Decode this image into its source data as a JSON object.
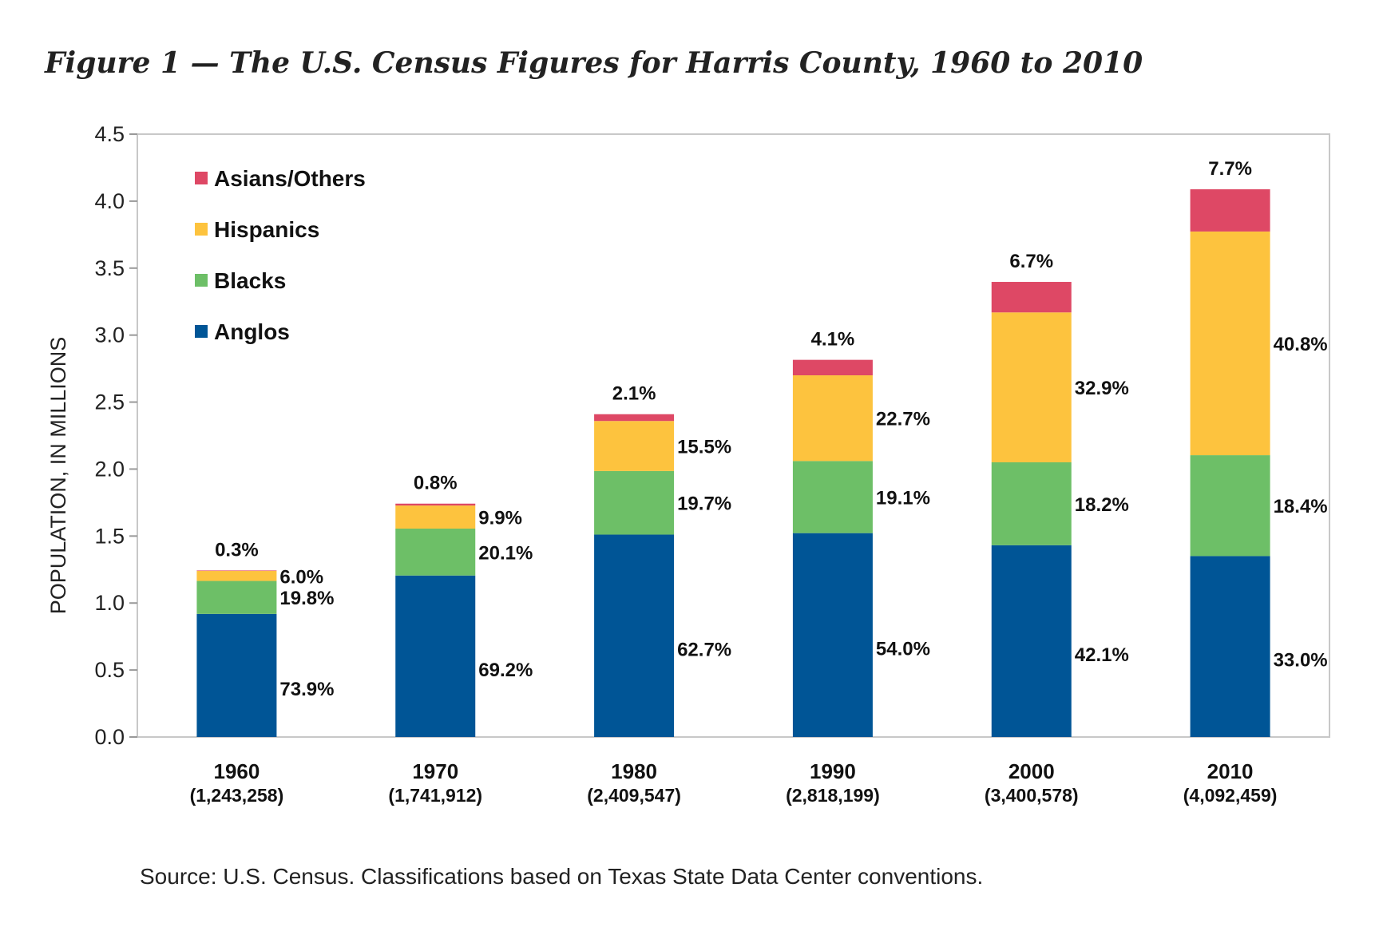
{
  "figure_title": "Figure 1 — The U.S. Census Figures for Harris County, 1960 to 2010",
  "source": "Source: U.S. Census. Classifications based on Texas State Data Center conventions.",
  "chart_data": {
    "type": "bar",
    "stacked": true,
    "title": "Figure 1 — The U.S. Census Figures for Harris County, 1960 to 2010",
    "xlabel": "",
    "ylabel": "POPULATION, IN MILLIONS",
    "ylim": [
      0,
      4.5
    ],
    "yticks": [
      "0.0",
      "0.5",
      "1.0",
      "1.5",
      "2.0",
      "2.5",
      "3.0",
      "3.5",
      "4.0",
      "4.5"
    ],
    "legend_position": "top-left",
    "categories": [
      "1960",
      "1970",
      "1980",
      "1990",
      "2000",
      "2010"
    ],
    "totals": [
      "(1,243,258)",
      "(1,741,912)",
      "(2,409,547)",
      "(2,818,199)",
      "(3,400,578)",
      "(4,092,459)"
    ],
    "total_values": [
      1243258,
      1741912,
      2409547,
      2818199,
      3400578,
      4092459
    ],
    "series": [
      {
        "name": "Anglos",
        "color": "#005596",
        "percents": [
          73.9,
          69.2,
          62.7,
          54.0,
          42.1,
          33.0
        ],
        "labels": [
          "73.9%",
          "69.2%",
          "62.7%",
          "54.0%",
          "42.1%",
          "33.0%"
        ]
      },
      {
        "name": "Blacks",
        "color": "#6dbf67",
        "percents": [
          19.8,
          20.1,
          19.7,
          19.1,
          18.2,
          18.4
        ],
        "labels": [
          "19.8%",
          "20.1%",
          "19.7%",
          "19.1%",
          "18.2%",
          "18.4%"
        ]
      },
      {
        "name": "Hispanics",
        "color": "#fdc33e",
        "percents": [
          6.0,
          9.9,
          15.5,
          22.7,
          32.9,
          40.8
        ],
        "labels": [
          "6.0%",
          "9.9%",
          "15.5%",
          "22.7%",
          "32.9%",
          "40.8%"
        ]
      },
      {
        "name": "Asians/Others",
        "color": "#de4865",
        "percents": [
          0.3,
          0.8,
          2.1,
          4.1,
          6.7,
          7.7
        ],
        "labels": [
          "0.3%",
          "0.8%",
          "2.1%",
          "4.1%",
          "6.7%",
          "7.7%"
        ]
      }
    ],
    "legend_order": [
      "Asians/Others",
      "Hispanics",
      "Blacks",
      "Anglos"
    ]
  }
}
